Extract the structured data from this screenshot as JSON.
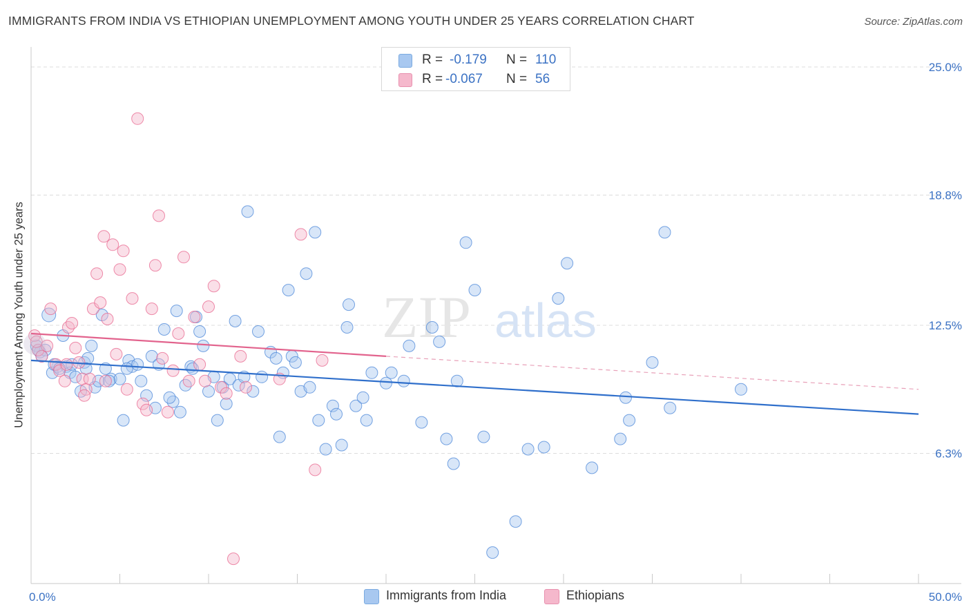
{
  "title": "IMMIGRANTS FROM INDIA VS ETHIOPIAN UNEMPLOYMENT AMONG YOUTH UNDER 25 YEARS CORRELATION CHART",
  "source": "Source: ZipAtlas.com",
  "watermark": {
    "zip": "ZIP",
    "atlas": "atlas"
  },
  "legend": {
    "rows": [
      {
        "r_label": "R =",
        "r_value": "-0.179",
        "n_label": "N =",
        "n_value": "110",
        "color": "#a8c8f0"
      },
      {
        "r_label": "R =",
        "r_value": "-0.067",
        "n_label": "N =",
        "n_value": "56",
        "color": "#f5b8cc"
      }
    ]
  },
  "bottom_legend": [
    {
      "label": "Immigrants from India",
      "color": "#a8c8f0"
    },
    {
      "label": "Ethiopians",
      "color": "#f5b8cc"
    }
  ],
  "chart_data": {
    "type": "scatter",
    "xlabel": "",
    "ylabel": "Unemployment Among Youth under 25 years",
    "xlim": [
      0,
      50
    ],
    "ylim": [
      0,
      25
    ],
    "x_tick_labels": [
      "0.0%",
      "50.0%"
    ],
    "y_tick_labels": [
      "25.0%",
      "18.8%",
      "12.5%",
      "6.3%"
    ],
    "y_tick_values": [
      25.0,
      18.8,
      12.5,
      6.3
    ],
    "grid": true,
    "series": [
      {
        "name": "Immigrants from India",
        "color": "#4a86d8",
        "fill": "#a8c8f0",
        "trend": {
          "x": [
            0,
            50
          ],
          "y": [
            10.8,
            8.2
          ]
        },
        "points": [
          [
            0.3,
            11.5
          ],
          [
            0.5,
            11.2
          ],
          [
            0.8,
            11.3
          ],
          [
            1.0,
            13.0
          ],
          [
            1.2,
            10.2
          ],
          [
            1.5,
            10.5
          ],
          [
            1.8,
            12.0
          ],
          [
            2.0,
            10.5
          ],
          [
            2.2,
            10.2
          ],
          [
            2.5,
            10.0
          ],
          [
            2.8,
            9.3
          ],
          [
            3.0,
            10.7
          ],
          [
            3.2,
            10.9
          ],
          [
            3.4,
            11.5
          ],
          [
            3.6,
            9.5
          ],
          [
            3.8,
            9.8
          ],
          [
            4.0,
            13.0
          ],
          [
            4.2,
            10.4
          ],
          [
            4.5,
            9.9
          ],
          [
            5.0,
            9.9
          ],
          [
            5.2,
            7.9
          ],
          [
            5.5,
            10.8
          ],
          [
            5.7,
            10.5
          ],
          [
            6.0,
            10.6
          ],
          [
            6.5,
            9.1
          ],
          [
            6.8,
            11.0
          ],
          [
            7.0,
            8.5
          ],
          [
            7.2,
            10.6
          ],
          [
            7.5,
            12.3
          ],
          [
            8.0,
            8.8
          ],
          [
            8.2,
            13.2
          ],
          [
            8.4,
            8.3
          ],
          [
            8.7,
            9.6
          ],
          [
            9.0,
            10.5
          ],
          [
            9.3,
            12.9
          ],
          [
            9.5,
            12.2
          ],
          [
            9.7,
            11.5
          ],
          [
            10.0,
            9.3
          ],
          [
            10.3,
            10.0
          ],
          [
            10.5,
            7.9
          ],
          [
            10.8,
            9.5
          ],
          [
            11.0,
            8.7
          ],
          [
            11.2,
            9.9
          ],
          [
            11.5,
            12.7
          ],
          [
            11.7,
            9.6
          ],
          [
            12.0,
            10.0
          ],
          [
            12.2,
            18.0
          ],
          [
            12.5,
            9.3
          ],
          [
            12.8,
            12.2
          ],
          [
            13.0,
            10.0
          ],
          [
            13.5,
            11.2
          ],
          [
            13.8,
            10.9
          ],
          [
            14.0,
            7.1
          ],
          [
            14.2,
            10.2
          ],
          [
            14.5,
            14.2
          ],
          [
            14.7,
            11.0
          ],
          [
            14.9,
            10.7
          ],
          [
            15.2,
            9.3
          ],
          [
            15.5,
            15.0
          ],
          [
            15.7,
            9.5
          ],
          [
            16.0,
            17.0
          ],
          [
            16.2,
            7.9
          ],
          [
            16.6,
            6.5
          ],
          [
            17.0,
            8.6
          ],
          [
            17.2,
            8.2
          ],
          [
            17.5,
            6.7
          ],
          [
            17.8,
            12.4
          ],
          [
            17.9,
            13.5
          ],
          [
            18.3,
            8.6
          ],
          [
            18.7,
            9.0
          ],
          [
            18.9,
            7.9
          ],
          [
            19.2,
            10.2
          ],
          [
            20.0,
            9.7
          ],
          [
            20.3,
            10.2
          ],
          [
            21.0,
            9.8
          ],
          [
            21.3,
            11.5
          ],
          [
            22.0,
            7.8
          ],
          [
            22.6,
            12.4
          ],
          [
            23.0,
            11.7
          ],
          [
            23.4,
            7.0
          ],
          [
            23.8,
            5.8
          ],
          [
            24.0,
            9.8
          ],
          [
            24.5,
            16.5
          ],
          [
            25.0,
            14.2
          ],
          [
            25.5,
            7.1
          ],
          [
            26.0,
            1.5
          ],
          [
            27.3,
            3.0
          ],
          [
            28.0,
            6.5
          ],
          [
            28.9,
            6.6
          ],
          [
            29.7,
            13.8
          ],
          [
            30.2,
            15.5
          ],
          [
            31.6,
            5.6
          ],
          [
            33.2,
            7.0
          ],
          [
            33.5,
            9.0
          ],
          [
            33.7,
            7.9
          ],
          [
            35.0,
            10.7
          ],
          [
            35.7,
            17.0
          ],
          [
            36.0,
            8.5
          ],
          [
            40.0,
            9.4
          ],
          [
            0.4,
            11.3
          ],
          [
            0.6,
            11.0
          ],
          [
            1.3,
            10.6
          ],
          [
            1.6,
            10.4
          ],
          [
            2.3,
            10.6
          ],
          [
            3.1,
            10.4
          ],
          [
            4.4,
            9.8
          ],
          [
            5.4,
            10.4
          ],
          [
            6.2,
            9.8
          ],
          [
            7.8,
            9.0
          ],
          [
            9.1,
            10.4
          ]
        ]
      },
      {
        "name": "Ethiopians",
        "color": "#e8668e",
        "fill": "#f5b8cc",
        "trend": {
          "x": [
            0,
            20
          ],
          "y": [
            12.1,
            11.0
          ],
          "dashed_x": [
            20,
            50
          ],
          "dashed_y": [
            11.0,
            9.4
          ]
        },
        "points": [
          [
            0.2,
            12.0
          ],
          [
            0.4,
            11.3
          ],
          [
            0.6,
            11.0
          ],
          [
            0.9,
            11.5
          ],
          [
            1.1,
            13.3
          ],
          [
            1.4,
            10.6
          ],
          [
            1.6,
            10.3
          ],
          [
            2.1,
            12.4
          ],
          [
            2.3,
            12.6
          ],
          [
            2.5,
            11.4
          ],
          [
            2.7,
            10.7
          ],
          [
            2.9,
            9.9
          ],
          [
            3.1,
            9.4
          ],
          [
            3.3,
            9.9
          ],
          [
            3.5,
            13.3
          ],
          [
            3.7,
            15.0
          ],
          [
            3.9,
            13.6
          ],
          [
            4.1,
            16.8
          ],
          [
            4.3,
            12.8
          ],
          [
            4.6,
            16.4
          ],
          [
            4.8,
            11.1
          ],
          [
            5.0,
            15.2
          ],
          [
            5.2,
            16.1
          ],
          [
            5.4,
            9.4
          ],
          [
            5.7,
            13.8
          ],
          [
            6.0,
            22.5
          ],
          [
            6.3,
            8.7
          ],
          [
            6.5,
            8.4
          ],
          [
            6.8,
            13.3
          ],
          [
            7.0,
            15.4
          ],
          [
            7.2,
            17.8
          ],
          [
            7.4,
            10.9
          ],
          [
            7.7,
            8.3
          ],
          [
            8.0,
            10.3
          ],
          [
            8.3,
            12.1
          ],
          [
            8.6,
            15.8
          ],
          [
            8.9,
            9.8
          ],
          [
            9.2,
            12.9
          ],
          [
            9.5,
            10.6
          ],
          [
            9.8,
            9.8
          ],
          [
            10.0,
            13.4
          ],
          [
            10.3,
            14.4
          ],
          [
            10.7,
            9.5
          ],
          [
            11.0,
            9.2
          ],
          [
            11.4,
            1.2
          ],
          [
            11.8,
            11.0
          ],
          [
            12.1,
            9.5
          ],
          [
            14.0,
            9.9
          ],
          [
            15.2,
            16.9
          ],
          [
            16.0,
            5.5
          ],
          [
            16.4,
            10.8
          ],
          [
            0.3,
            11.7
          ],
          [
            1.9,
            9.8
          ],
          [
            2.0,
            10.6
          ],
          [
            3.0,
            9.1
          ],
          [
            4.2,
            9.8
          ]
        ]
      }
    ]
  }
}
